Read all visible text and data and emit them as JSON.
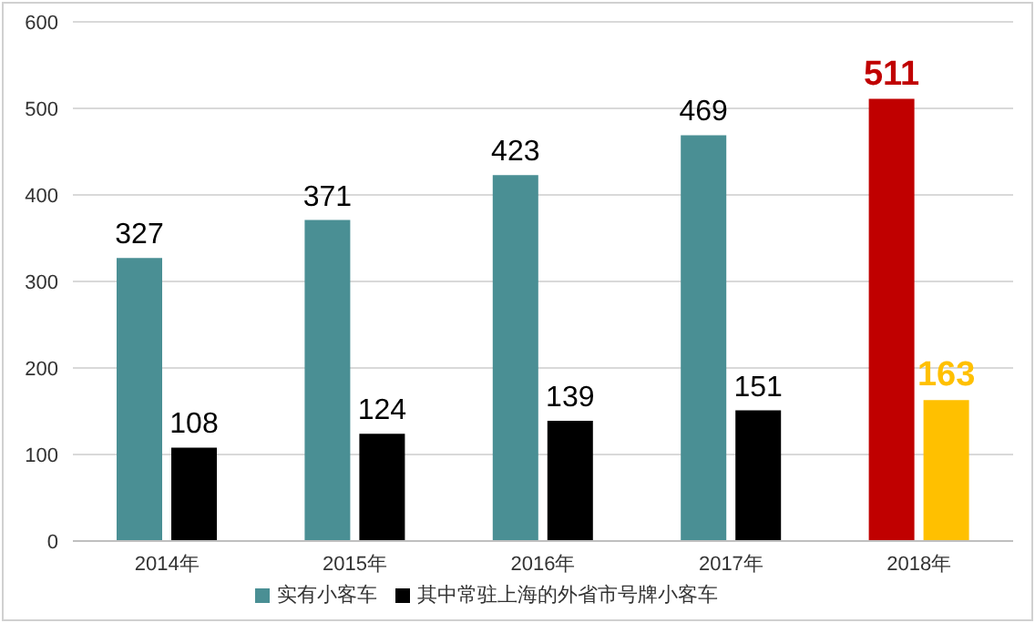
{
  "chart_data": {
    "type": "bar",
    "categories": [
      "2014年",
      "2015年",
      "2016年",
      "2017年",
      "2018年"
    ],
    "series": [
      {
        "name": "实有小客车",
        "color": "#4a8f94",
        "colors": [
          "#4a8f94",
          "#4a8f94",
          "#4a8f94",
          "#4a8f94",
          "#c00000"
        ],
        "values": [
          327,
          371,
          423,
          469,
          511
        ]
      },
      {
        "name": "其中常驻上海的外省市号牌小客车",
        "color": "#000000",
        "colors": [
          "#000000",
          "#000000",
          "#000000",
          "#000000",
          "#ffc000"
        ],
        "values": [
          108,
          124,
          139,
          151,
          163
        ]
      }
    ],
    "ylim": [
      0,
      600
    ],
    "yticks": [
      0,
      100,
      200,
      300,
      400,
      500,
      600
    ],
    "grid": "y",
    "legend": "bottom",
    "data_labels": true
  }
}
